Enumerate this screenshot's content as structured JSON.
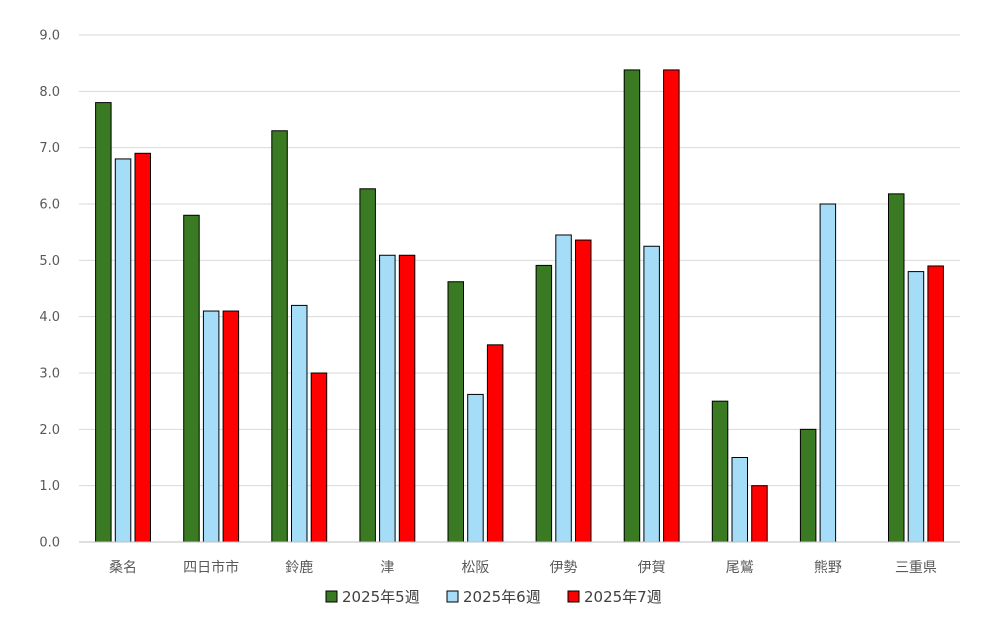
{
  "chart_data": {
    "type": "bar",
    "title": "",
    "xlabel": "",
    "ylabel": "",
    "ylim": [
      0,
      9
    ],
    "yticks": [
      "0.0",
      "1.0",
      "2.0",
      "3.0",
      "4.0",
      "5.0",
      "6.0",
      "7.0",
      "8.0",
      "9.0"
    ],
    "grid": true,
    "legend_position": "bottom",
    "categories": [
      "桑名",
      "四日市市",
      "鈴鹿",
      "津",
      "松阪",
      "伊勢",
      "伊賀",
      "尾鷲",
      "熊野",
      "三重県"
    ],
    "series": [
      {
        "name": "2025年5週",
        "color": "#3a7a22",
        "values": [
          7.8,
          5.8,
          7.3,
          6.27,
          4.62,
          4.91,
          8.38,
          2.5,
          2.0,
          6.18
        ]
      },
      {
        "name": "2025年6週",
        "color": "#a5dcf8",
        "values": [
          6.8,
          4.1,
          4.2,
          5.09,
          2.62,
          5.45,
          5.25,
          1.5,
          6.0,
          4.8
        ]
      },
      {
        "name": "2025年7週",
        "color": "#ff0000",
        "values": [
          6.9,
          4.1,
          3.0,
          5.09,
          3.5,
          5.36,
          8.38,
          1.0,
          null,
          4.9
        ]
      }
    ]
  }
}
